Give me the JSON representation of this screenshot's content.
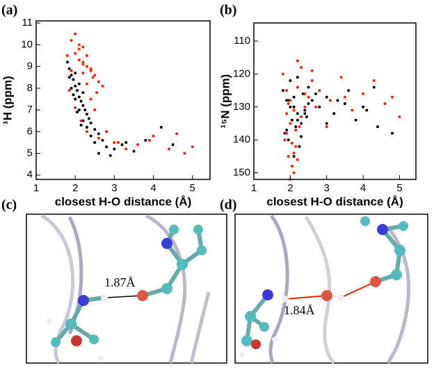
{
  "chart_data": [
    {
      "type": "scatter",
      "label": "(a)",
      "ylabel": "¹H (ppm)",
      "xlabel": "closest H-O distance (Å)",
      "xlim": [
        1,
        5.45
      ],
      "xticks": [
        1,
        2,
        3,
        4,
        5
      ],
      "ylim": [
        3.8,
        11.1
      ],
      "yticks": [
        4,
        5,
        6,
        7,
        8,
        9,
        10,
        11
      ],
      "series": [
        {
          "color": "#000000",
          "x": [
            1.8,
            1.85,
            1.9,
            1.95,
            2.0,
            2.05,
            2.1,
            2.15,
            2.2,
            2.25,
            2.3,
            2.35,
            2.4,
            2.5,
            2.6,
            2.7,
            1.9,
            2.0,
            2.1,
            2.2,
            2.3,
            2.4,
            2.5,
            2.8,
            3.0,
            3.2,
            3.5,
            3.8,
            4.2,
            2.0,
            2.1,
            2.2,
            1.85,
            1.95,
            2.05,
            2.15,
            2.6,
            2.9,
            3.3,
            4.5
          ],
          "values": [
            9.2,
            8.9,
            8.6,
            8.4,
            8.1,
            7.9,
            7.6,
            7.4,
            7.2,
            7.0,
            6.8,
            6.6,
            6.4,
            6.1,
            5.9,
            5.6,
            8.0,
            7.5,
            7.0,
            6.5,
            6.2,
            5.8,
            5.5,
            5.3,
            5.2,
            5.4,
            5.1,
            5.6,
            6.2,
            8.7,
            8.2,
            7.8,
            8.5,
            7.7,
            6.9,
            6.3,
            5.0,
            4.9,
            5.5,
            5.4
          ]
        },
        {
          "color": "#ff2200",
          "x": [
            1.8,
            1.9,
            2.0,
            2.1,
            2.2,
            2.3,
            2.4,
            2.5,
            2.6,
            2.7,
            1.9,
            2.0,
            2.1,
            2.2,
            2.3,
            2.4,
            2.5,
            2.1,
            2.2,
            2.3,
            2.4,
            2.8,
            3.0,
            3.3,
            3.6,
            4.0,
            4.4,
            4.8,
            5.0,
            1.85,
            2.0,
            2.15,
            2.3,
            2.6,
            3.1,
            2.2,
            2.45,
            2.55,
            3.9,
            4.6
          ],
          "values": [
            9.5,
            10.2,
            10.5,
            9.8,
            9.2,
            9.0,
            8.8,
            8.6,
            8.3,
            8.1,
            8.8,
            9.6,
            10.0,
            8.7,
            8.2,
            7.5,
            7.0,
            9.3,
            9.9,
            9.5,
            8.9,
            6.0,
            5.5,
            5.2,
            5.4,
            5.8,
            5.2,
            5.0,
            5.3,
            7.9,
            7.1,
            6.5,
            6.0,
            5.7,
            5.5,
            9.1,
            8.5,
            7.8,
            5.6,
            5.9
          ]
        }
      ]
    },
    {
      "type": "scatter",
      "label": "(b)",
      "ylabel": "¹⁵N (ppm)",
      "xlabel": "closest H-O distance (Å)",
      "xlim": [
        1,
        5.45
      ],
      "xticks": [
        1,
        2,
        3,
        4,
        5
      ],
      "ylim": [
        152,
        104.5
      ],
      "yticks": [
        110,
        120,
        130,
        140,
        150
      ],
      "series": [
        {
          "color": "#000000",
          "x": [
            1.8,
            1.9,
            2.0,
            2.1,
            2.2,
            2.3,
            2.4,
            2.5,
            1.85,
            1.95,
            2.05,
            2.15,
            2.25,
            2.35,
            2.45,
            2.6,
            2.8,
            3.0,
            3.2,
            3.5,
            3.8,
            4.1,
            4.4,
            4.8,
            2.0,
            2.1,
            2.2,
            1.9,
            2.3,
            2.5,
            2.7,
            3.0,
            3.3,
            3.6,
            4.0,
            4.3,
            2.1,
            2.2,
            1.95,
            2.4
          ],
          "values": [
            125,
            128,
            130,
            127,
            132,
            135,
            131,
            129,
            138,
            140,
            134,
            136,
            142,
            126,
            133,
            128,
            130,
            127,
            132,
            129,
            134,
            131,
            136,
            138,
            122,
            145,
            121,
            137,
            139,
            124,
            126,
            135,
            128,
            125,
            130,
            124,
            130,
            134,
            128,
            132
          ]
        },
        {
          "color": "#ff2200",
          "x": [
            1.8,
            1.9,
            2.0,
            2.1,
            2.2,
            2.3,
            2.4,
            2.5,
            2.6,
            1.85,
            1.95,
            2.05,
            2.15,
            2.25,
            2.0,
            2.1,
            1.9,
            2.2,
            2.3,
            2.8,
            3.1,
            3.4,
            3.7,
            4.0,
            4.3,
            4.6,
            5.0,
            2.0,
            2.1,
            2.2,
            1.9,
            2.4,
            2.6,
            3.0,
            3.5,
            2.05,
            2.15,
            1.95,
            4.8,
            2.7
          ],
          "values": [
            120,
            125,
            128,
            131,
            124,
            118,
            130,
            127,
            122,
            140,
            145,
            148,
            142,
            136,
            152,
            150,
            138,
            116,
            133,
            125,
            128,
            121,
            131,
            126,
            122,
            129,
            133,
            135,
            144,
            146,
            132,
            126,
            119,
            136,
            127,
            141,
            137,
            129,
            127,
            130
          ]
        }
      ]
    }
  ],
  "panels": [
    {
      "label": "(c)",
      "annotation": "1.87Å"
    },
    {
      "label": "(d)",
      "annotation": "1.84Å"
    }
  ]
}
